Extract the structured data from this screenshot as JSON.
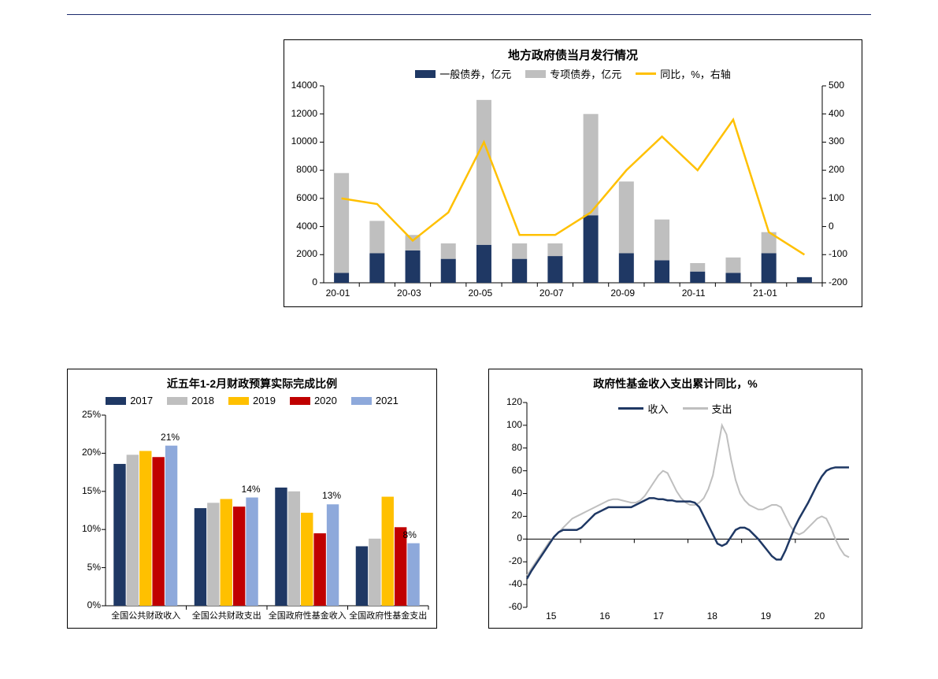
{
  "colors": {
    "navy": "#1f3864",
    "grey": "#bfbfbf",
    "lightblue": "#8ea9db",
    "gold": "#ffc000",
    "red": "#c00000",
    "axis": "#000000",
    "bg": "#ffffff"
  },
  "chart1": {
    "title": "地方政府债当月发行情况",
    "title_fontsize": 15,
    "legend": [
      {
        "label": "一般债券，亿元",
        "type": "bar",
        "colorKey": "navy"
      },
      {
        "label": "专项债券，亿元",
        "type": "bar",
        "colorKey": "grey"
      },
      {
        "label": "同比，%，右轴",
        "type": "line",
        "colorKey": "gold"
      }
    ],
    "xlabels": [
      "20-01",
      "",
      "20-03",
      "",
      "20-05",
      "",
      "20-07",
      "",
      "20-09",
      "",
      "20-11",
      "",
      "21-01",
      ""
    ],
    "yleft": {
      "min": 0,
      "max": 14000,
      "step": 2000
    },
    "yright": {
      "min": -200,
      "max": 500,
      "step": 100
    },
    "series": {
      "general": [
        700,
        2100,
        2300,
        1700,
        2700,
        1700,
        1900,
        4800,
        2100,
        1600,
        800,
        700,
        2100,
        400
      ],
      "special": [
        7100,
        2300,
        1100,
        1100,
        10300,
        1100,
        900,
        7200,
        5100,
        2900,
        600,
        1100,
        1500,
        0
      ],
      "yoy": [
        100,
        80,
        -50,
        50,
        300,
        -30,
        -30,
        50,
        200,
        320,
        200,
        380,
        -20,
        -100
      ]
    },
    "bar_width": 0.42
  },
  "chart2": {
    "title": "近五年1-2月财政预算实际完成比例",
    "title_fontsize": 14,
    "legend": [
      {
        "label": "2017",
        "colorKey": "navy"
      },
      {
        "label": "2018",
        "colorKey": "grey"
      },
      {
        "label": "2019",
        "colorKey": "gold"
      },
      {
        "label": "2020",
        "colorKey": "red"
      },
      {
        "label": "2021",
        "colorKey": "lightblue"
      }
    ],
    "categories": [
      "全国公共财政收入",
      "全国公共财政支出",
      "全国政府性基金收入",
      "全国政府性基金支出"
    ],
    "y": {
      "min": 0,
      "max": 25,
      "step": 5,
      "fmt": "%"
    },
    "values": [
      [
        18.6,
        19.8,
        20.3,
        19.5,
        21.0
      ],
      [
        12.8,
        13.5,
        14.0,
        13.0,
        14.2
      ],
      [
        15.5,
        15.0,
        12.2,
        9.5,
        13.3
      ],
      [
        7.8,
        8.8,
        14.3,
        10.3,
        8.2
      ]
    ],
    "annotations": [
      {
        "cat": 0,
        "idx": 4,
        "text": "21%"
      },
      {
        "cat": 1,
        "idx": 4,
        "text": "14%"
      },
      {
        "cat": 2,
        "idx": 4,
        "text": "13%"
      },
      {
        "cat": 3,
        "idx": 4,
        "text": "8%"
      }
    ],
    "bar_width": 0.16
  },
  "chart3": {
    "title": "政府性基金收入支出累计同比，%",
    "title_fontsize": 14,
    "legend": [
      {
        "label": "收入",
        "colorKey": "navy"
      },
      {
        "label": "支出",
        "colorKey": "grey"
      }
    ],
    "xlabels": [
      "15",
      "16",
      "17",
      "18",
      "19",
      "20"
    ],
    "y": {
      "min": -60,
      "max": 120,
      "step": 20
    },
    "n_points": 72,
    "income": [
      -35,
      -28,
      -22,
      -16,
      -10,
      -4,
      2,
      6,
      8,
      8,
      8,
      8,
      10,
      14,
      18,
      22,
      24,
      26,
      28,
      28,
      28,
      28,
      28,
      28,
      30,
      32,
      34,
      36,
      36,
      35,
      35,
      34,
      34,
      33,
      33,
      33,
      33,
      32,
      28,
      20,
      12,
      4,
      -4,
      -6,
      -4,
      2,
      8,
      10,
      10,
      8,
      4,
      0,
      -5,
      -10,
      -15,
      -18,
      -18,
      -10,
      0,
      10,
      18,
      25,
      32,
      40,
      48,
      55,
      60,
      62,
      63,
      63,
      63,
      63
    ],
    "expend": [
      -32,
      -26,
      -20,
      -14,
      -8,
      -2,
      2,
      6,
      10,
      14,
      18,
      20,
      22,
      24,
      26,
      28,
      30,
      32,
      34,
      35,
      35,
      34,
      33,
      32,
      32,
      34,
      38,
      44,
      50,
      56,
      60,
      58,
      50,
      42,
      36,
      32,
      30,
      30,
      32,
      36,
      44,
      56,
      78,
      100,
      92,
      70,
      52,
      40,
      34,
      30,
      28,
      26,
      26,
      28,
      30,
      30,
      28,
      20,
      12,
      6,
      4,
      6,
      10,
      14,
      18,
      20,
      18,
      10,
      0,
      -8,
      -14,
      -16
    ]
  }
}
